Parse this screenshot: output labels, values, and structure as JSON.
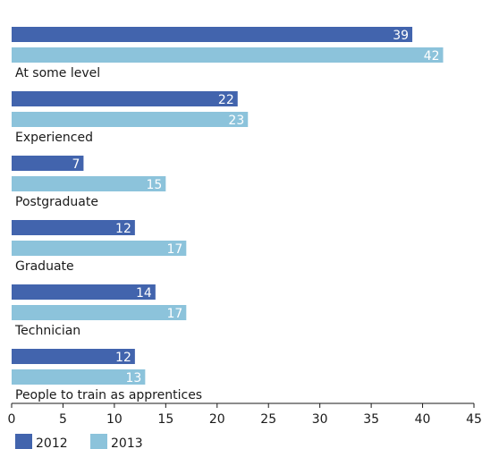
{
  "chart_data": {
    "type": "bar",
    "orientation": "horizontal",
    "categories": [
      "At some level",
      "Experienced",
      "Postgraduate",
      "Graduate",
      "Technician",
      "People to train as apprentices"
    ],
    "series": [
      {
        "name": "2012",
        "color": "#4264ad",
        "values": [
          39,
          22,
          7,
          12,
          14,
          12
        ]
      },
      {
        "name": "2013",
        "color": "#8cc3db",
        "values": [
          42,
          23,
          15,
          17,
          17,
          13
        ]
      }
    ],
    "xlim": [
      0,
      45
    ],
    "xticks": [
      0,
      5,
      10,
      15,
      20,
      25,
      30,
      35,
      40,
      45
    ],
    "grid": false,
    "legend_position": "bottom-left",
    "data_labels": true
  }
}
